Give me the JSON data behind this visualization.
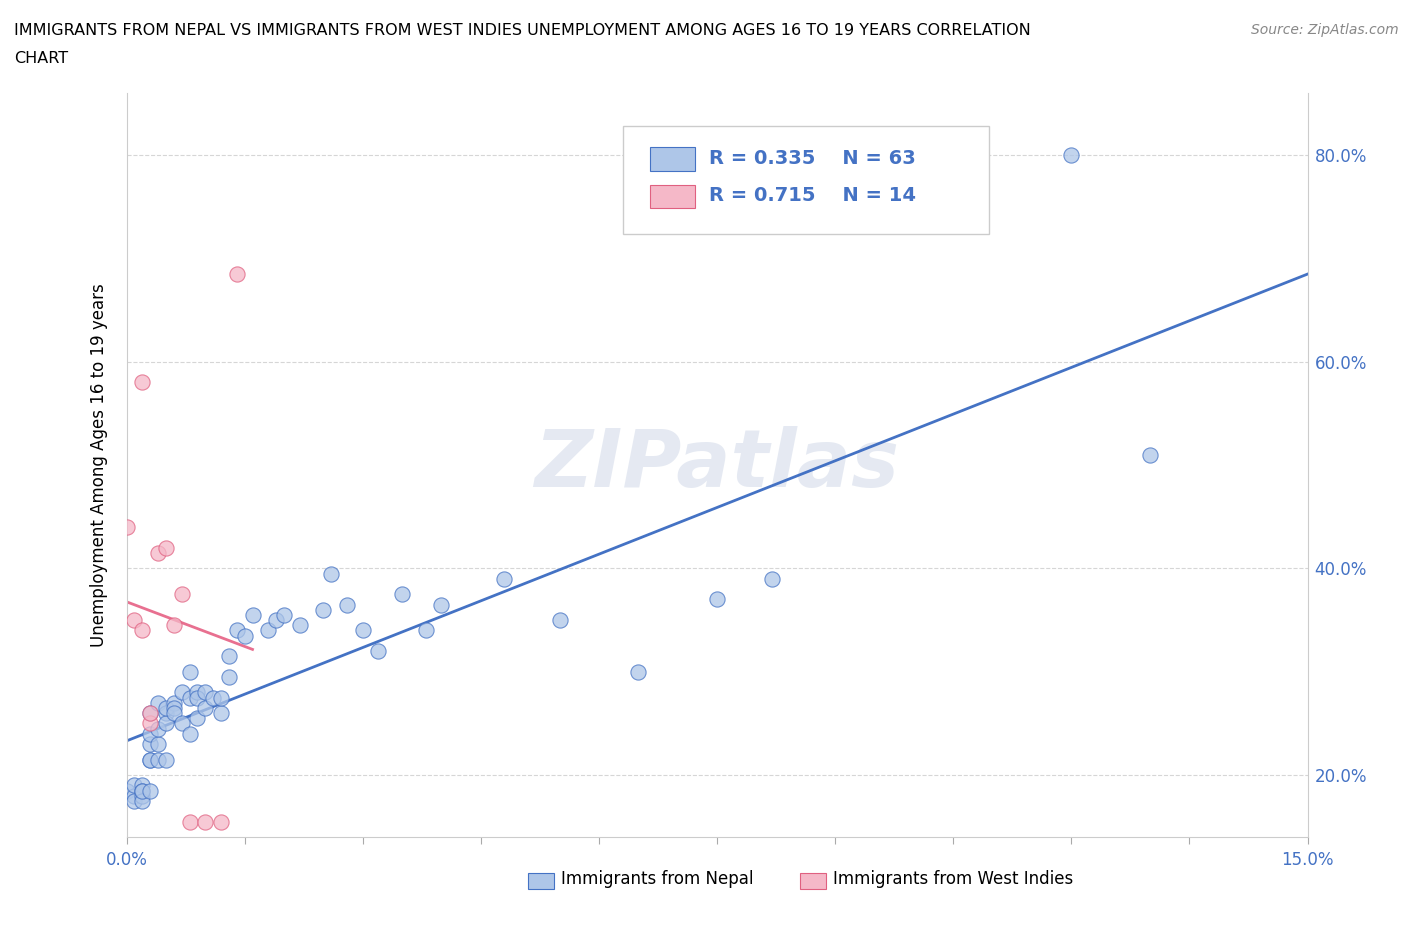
{
  "title_line1": "IMMIGRANTS FROM NEPAL VS IMMIGRANTS FROM WEST INDIES UNEMPLOYMENT AMONG AGES 16 TO 19 YEARS CORRELATION",
  "title_line2": "CHART",
  "source": "Source: ZipAtlas.com",
  "ylabel": "Unemployment Among Ages 16 to 19 years",
  "xlim": [
    0.0,
    0.15
  ],
  "ylim": [
    0.14,
    0.86
  ],
  "xticks": [
    0.0,
    0.015,
    0.03,
    0.045,
    0.06,
    0.075,
    0.09,
    0.105,
    0.12,
    0.135,
    0.15
  ],
  "xtick_labels": [
    "0.0%",
    "",
    "",
    "",
    "",
    "",
    "",
    "",
    "",
    "",
    "15.0%"
  ],
  "yticks": [
    0.2,
    0.4,
    0.6,
    0.8
  ],
  "ytick_labels": [
    "20.0%",
    "40.0%",
    "60.0%",
    "80.0%"
  ],
  "blue_fill": "#aec6e8",
  "blue_edge": "#4472c4",
  "pink_fill": "#f5b8c8",
  "pink_edge": "#e06080",
  "blue_line": "#4472c4",
  "pink_line": "#e87090",
  "legend_r_blue": "R = 0.335",
  "legend_n_blue": "N = 63",
  "legend_r_pink": "R = 0.715",
  "legend_n_pink": "N = 14",
  "nepal_x": [
    0.0,
    0.001,
    0.001,
    0.001,
    0.002,
    0.002,
    0.002,
    0.002,
    0.002,
    0.003,
    0.003,
    0.003,
    0.003,
    0.003,
    0.003,
    0.004,
    0.004,
    0.004,
    0.004,
    0.005,
    0.005,
    0.005,
    0.005,
    0.006,
    0.006,
    0.006,
    0.007,
    0.007,
    0.008,
    0.008,
    0.008,
    0.009,
    0.009,
    0.009,
    0.01,
    0.01,
    0.011,
    0.012,
    0.012,
    0.013,
    0.013,
    0.014,
    0.015,
    0.016,
    0.018,
    0.019,
    0.02,
    0.022,
    0.025,
    0.026,
    0.028,
    0.03,
    0.032,
    0.035,
    0.038,
    0.04,
    0.048,
    0.055,
    0.065,
    0.075,
    0.082,
    0.12,
    0.13
  ],
  "nepal_y": [
    0.185,
    0.18,
    0.175,
    0.19,
    0.18,
    0.19,
    0.185,
    0.175,
    0.185,
    0.185,
    0.215,
    0.215,
    0.23,
    0.24,
    0.26,
    0.215,
    0.23,
    0.245,
    0.27,
    0.215,
    0.26,
    0.25,
    0.265,
    0.27,
    0.265,
    0.26,
    0.25,
    0.28,
    0.24,
    0.3,
    0.275,
    0.28,
    0.255,
    0.275,
    0.28,
    0.265,
    0.275,
    0.26,
    0.275,
    0.295,
    0.315,
    0.34,
    0.335,
    0.355,
    0.34,
    0.35,
    0.355,
    0.345,
    0.36,
    0.395,
    0.365,
    0.34,
    0.32,
    0.375,
    0.34,
    0.365,
    0.39,
    0.35,
    0.3,
    0.37,
    0.39,
    0.8,
    0.51
  ],
  "wi_x": [
    0.0,
    0.001,
    0.002,
    0.002,
    0.003,
    0.003,
    0.004,
    0.005,
    0.006,
    0.007,
    0.008,
    0.01,
    0.012,
    0.014
  ],
  "wi_y": [
    0.44,
    0.35,
    0.34,
    0.58,
    0.25,
    0.26,
    0.415,
    0.42,
    0.345,
    0.375,
    0.155,
    0.155,
    0.155,
    0.685
  ]
}
